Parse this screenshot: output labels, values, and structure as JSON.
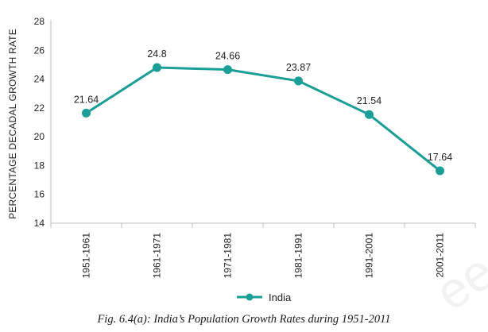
{
  "chart_data": {
    "type": "line",
    "title": "",
    "xlabel": "",
    "ylabel": "PERCENTAGE DECADAL GROWTH RATE",
    "ylim": [
      14,
      28
    ],
    "yticks": [
      14,
      16,
      18,
      20,
      22,
      24,
      26,
      28
    ],
    "categories": [
      "1951-1961",
      "1961-1971",
      "1971-1981",
      "1981-1991",
      "1991-2001",
      "2001-2011"
    ],
    "series": [
      {
        "name": "India",
        "color": "#1a9e96",
        "values": [
          21.64,
          24.8,
          24.66,
          23.87,
          21.54,
          17.64
        ],
        "labels": [
          "21.64",
          "24.8",
          "24.66",
          "23.87",
          "21.54",
          "17.64"
        ]
      }
    ],
    "legend_position": "bottom-center",
    "grid": false
  },
  "caption": "Fig. 6.4(a): India’s  Population Growth Rates during 1951-2011",
  "watermark": "ee"
}
